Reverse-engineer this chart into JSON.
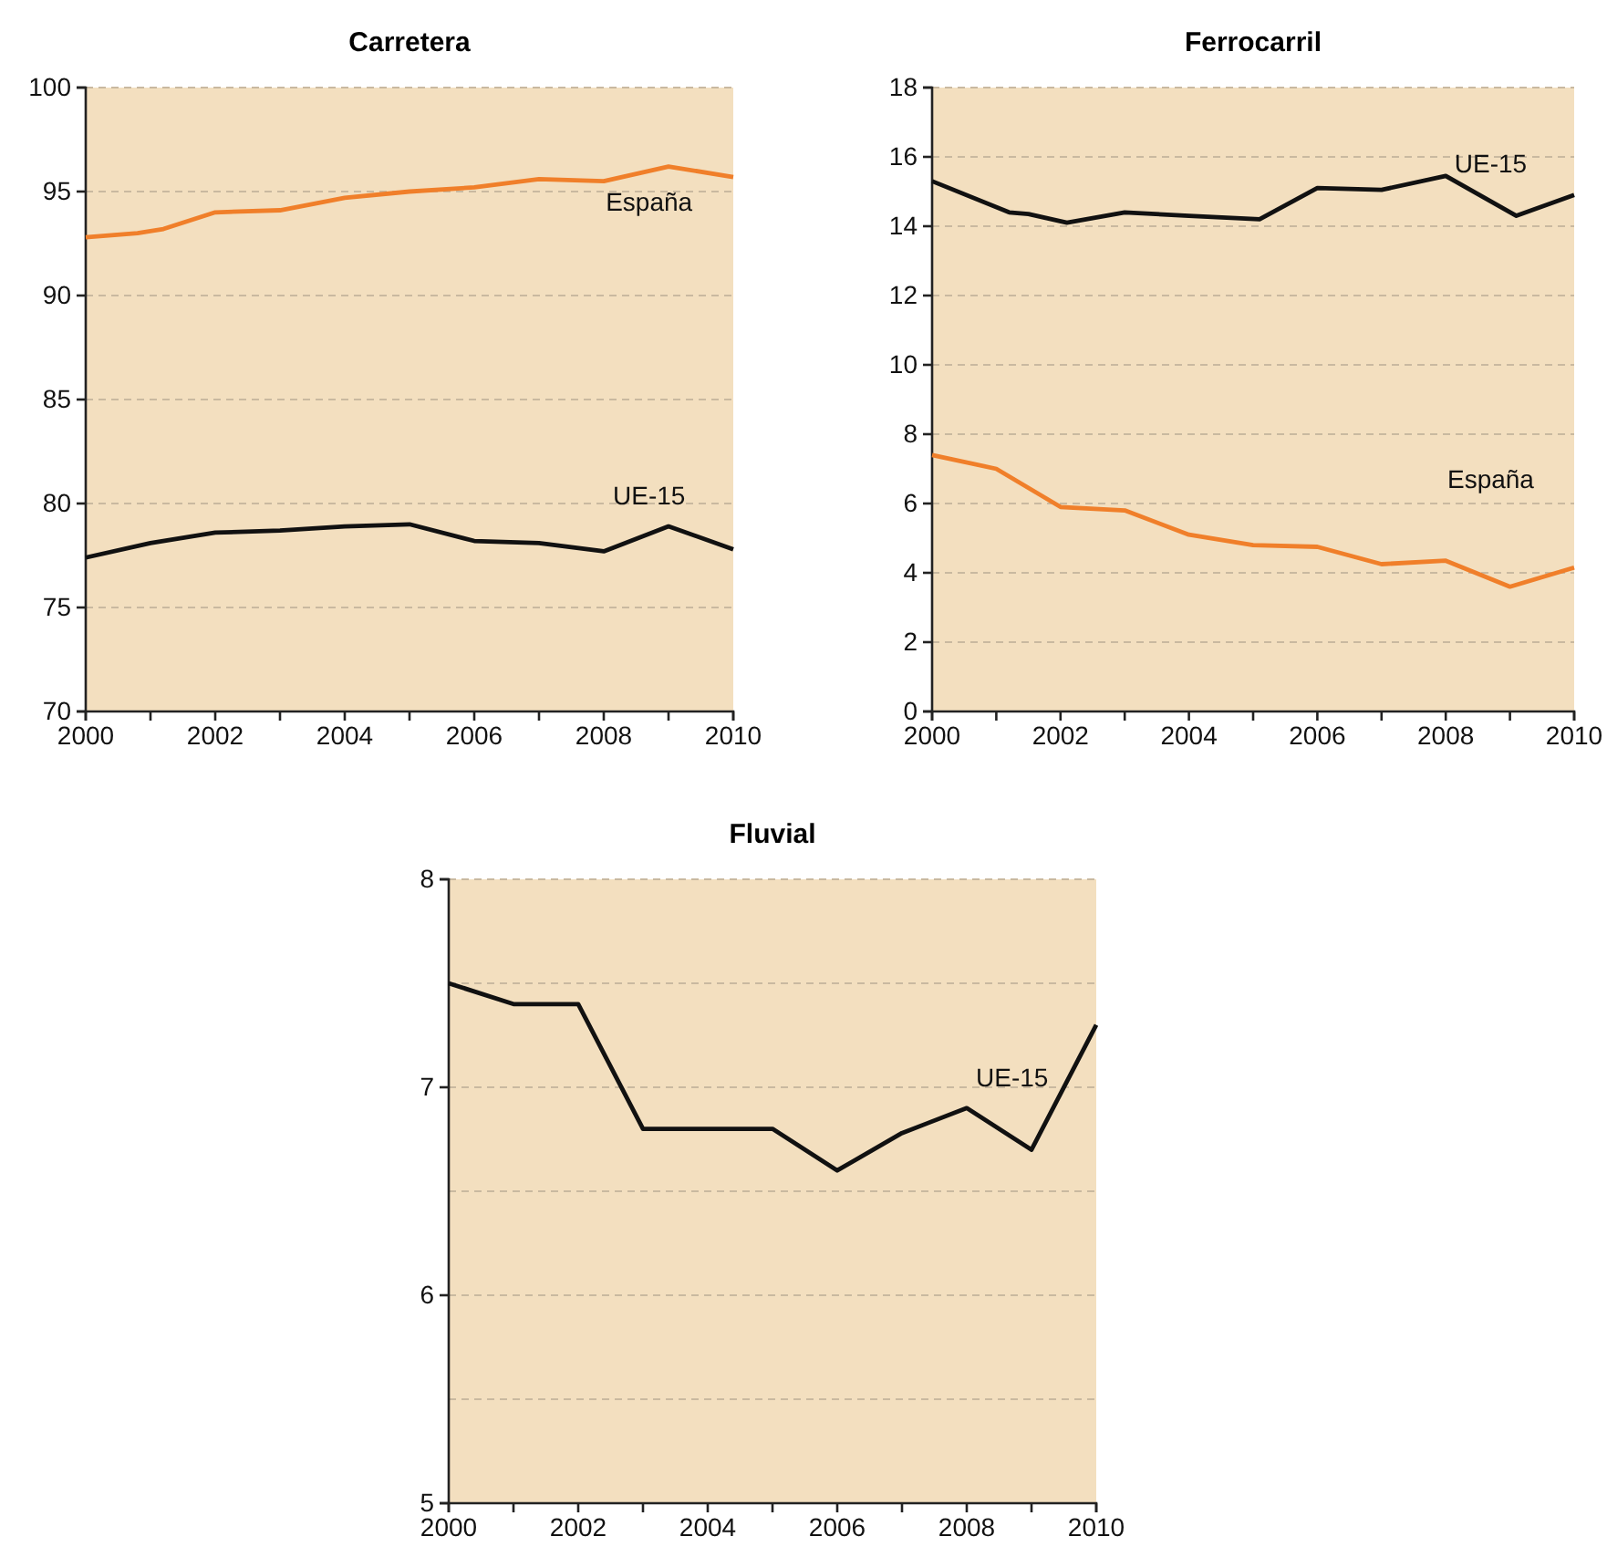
{
  "chart_data": [
    {
      "type": "line",
      "title": "Carretera",
      "xlim": [
        2000,
        2010
      ],
      "xticks": [
        2000,
        {
          "value": 2001,
          "label": null
        },
        2002,
        {
          "value": 2003,
          "label": null
        },
        2004,
        {
          "value": 2005,
          "label": null
        },
        2006,
        {
          "value": 2007,
          "label": null
        },
        2008,
        {
          "value": 2009,
          "label": null
        },
        2010
      ],
      "ylim": [
        70,
        100
      ],
      "yticks": [
        70,
        75,
        80,
        85,
        90,
        95,
        100
      ],
      "grid": "y",
      "line_style": "solid",
      "series": [
        {
          "name": "España",
          "color": "#f07f2a",
          "x": [
            2000,
            2000.8,
            2001.2,
            2002,
            2003,
            2004,
            2005,
            2006,
            2007,
            2008,
            2009,
            2010
          ],
          "values": [
            92.8,
            93.0,
            93.2,
            94.0,
            94.1,
            94.7,
            95.0,
            95.2,
            95.6,
            95.5,
            96.2,
            95.7
          ]
        },
        {
          "name": "UE-15",
          "color": "#111111",
          "x": [
            2000,
            2001,
            2002,
            2003,
            2004,
            2005,
            2006,
            2007,
            2008,
            2009,
            2010
          ],
          "values": [
            77.4,
            78.1,
            78.6,
            78.7,
            78.9,
            79.0,
            78.2,
            78.1,
            77.7,
            78.9,
            77.8
          ]
        }
      ]
    },
    {
      "type": "line",
      "title": "Ferrocarril",
      "xlim": [
        2000,
        2010
      ],
      "xticks": [
        2000,
        {
          "value": 2001,
          "label": null
        },
        2002,
        {
          "value": 2003,
          "label": null
        },
        2004,
        {
          "value": 2005,
          "label": null
        },
        2006,
        {
          "value": 2007,
          "label": null
        },
        2008,
        {
          "value": 2009,
          "label": null
        },
        2010
      ],
      "ylim": [
        0,
        18
      ],
      "yticks": [
        0,
        2,
        4,
        6,
        8,
        10,
        12,
        14,
        16,
        18
      ],
      "grid": "y",
      "line_style": "solid",
      "series": [
        {
          "name": "UE-15",
          "color": "#111111",
          "x": [
            2000,
            2001.2,
            2001.5,
            2002.1,
            2003,
            2004,
            2005.1,
            2006,
            2007,
            2008,
            2009.1,
            2010
          ],
          "values": [
            15.3,
            14.4,
            14.35,
            14.1,
            14.4,
            14.3,
            14.2,
            15.1,
            15.05,
            15.45,
            14.3,
            14.9
          ]
        },
        {
          "name": "España",
          "color": "#f07f2a",
          "x": [
            2000,
            2001,
            2002,
            2003,
            2004,
            2005,
            2006,
            2007,
            2008,
            2009,
            2010
          ],
          "values": [
            7.4,
            7.0,
            5.9,
            5.8,
            5.1,
            4.8,
            4.75,
            4.25,
            4.35,
            3.6,
            4.15
          ]
        }
      ]
    },
    {
      "type": "line",
      "title": "Fluvial",
      "xlim": [
        2000,
        2010
      ],
      "xticks": [
        2000,
        {
          "value": 2001,
          "label": null
        },
        2002,
        {
          "value": 2003,
          "label": null
        },
        2004,
        {
          "value": 2005,
          "label": null
        },
        2006,
        {
          "value": 2007,
          "label": null
        },
        2008,
        {
          "value": 2009,
          "label": null
        },
        2010
      ],
      "ylim": [
        5,
        8
      ],
      "yticks": [
        5,
        {
          "value": 5.5,
          "label": null
        },
        6,
        {
          "value": 6.5,
          "label": null
        },
        7,
        {
          "value": 7.5,
          "label": null
        },
        8
      ],
      "grid": "y",
      "line_style": "solid",
      "series": [
        {
          "name": "UE-15",
          "color": "#111111",
          "x": [
            2000,
            2001,
            2002,
            2003,
            2004,
            2005,
            2006,
            2007,
            2008,
            2009,
            2010
          ],
          "values": [
            7.5,
            7.4,
            7.4,
            6.8,
            6.8,
            6.8,
            6.6,
            6.78,
            6.9,
            6.7,
            7.3
          ]
        }
      ]
    }
  ]
}
